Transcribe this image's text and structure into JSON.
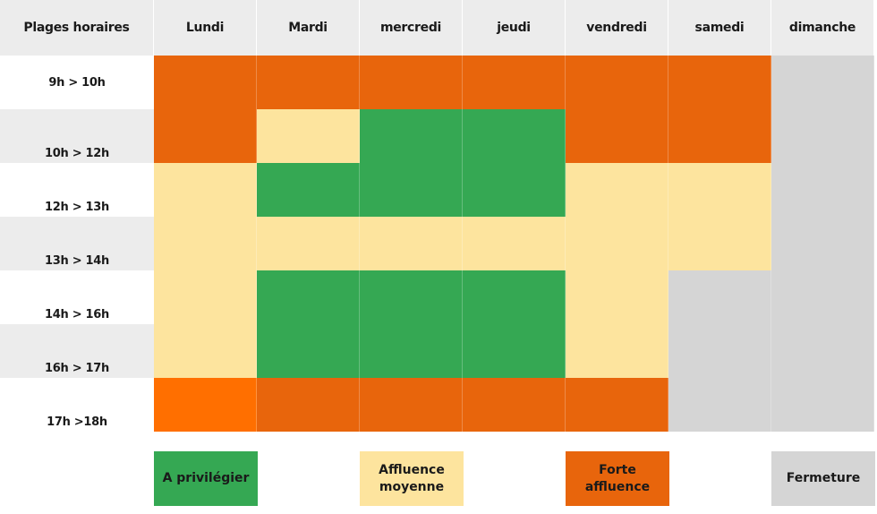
{
  "colors": {
    "green": "#35a853",
    "yellow": "#fde49e",
    "orange": "#e8650c",
    "orange_bright": "#ff6f00",
    "grey": "#d5d5d5",
    "header_bg": "#ececec"
  },
  "header": {
    "corner": "Plages horaires",
    "days": [
      "Lundi",
      "Mardi",
      "mercredi",
      "jeudi",
      "vendredi",
      "samedi",
      "dimanche"
    ]
  },
  "rows": [
    {
      "label": "9h > 10h",
      "cells": [
        "orange",
        "orange",
        "orange",
        "orange",
        "orange",
        "orange",
        "grey"
      ]
    },
    {
      "label": "10h > 12h",
      "cells": [
        "orange",
        "yellow",
        "green",
        "green",
        "orange",
        "orange",
        "grey"
      ]
    },
    {
      "label": "12h > 13h",
      "cells": [
        "yellow",
        "green",
        "green",
        "green",
        "yellow",
        "yellow",
        "grey"
      ]
    },
    {
      "label": "13h > 14h",
      "cells": [
        "yellow",
        "yellow",
        "yellow",
        "yellow",
        "yellow",
        "yellow",
        "grey"
      ]
    },
    {
      "label": "14h > 16h",
      "cells": [
        "yellow",
        "green",
        "green",
        "green",
        "yellow",
        "grey",
        "grey"
      ]
    },
    {
      "label": "16h > 17h",
      "cells": [
        "yellow",
        "green",
        "green",
        "green",
        "yellow",
        "grey",
        "grey"
      ]
    },
    {
      "label": "17h >18h",
      "cells": [
        "orange_bright",
        "orange",
        "orange",
        "orange",
        "orange",
        "grey",
        "grey"
      ]
    }
  ],
  "legend": [
    {
      "label": "A privilégier",
      "color": "green"
    },
    {
      "label": "Affluence moyenne",
      "color": "yellow"
    },
    {
      "label": "Forte affluence",
      "color": "orange"
    },
    {
      "label": "Fermeture",
      "color": "grey"
    }
  ]
}
